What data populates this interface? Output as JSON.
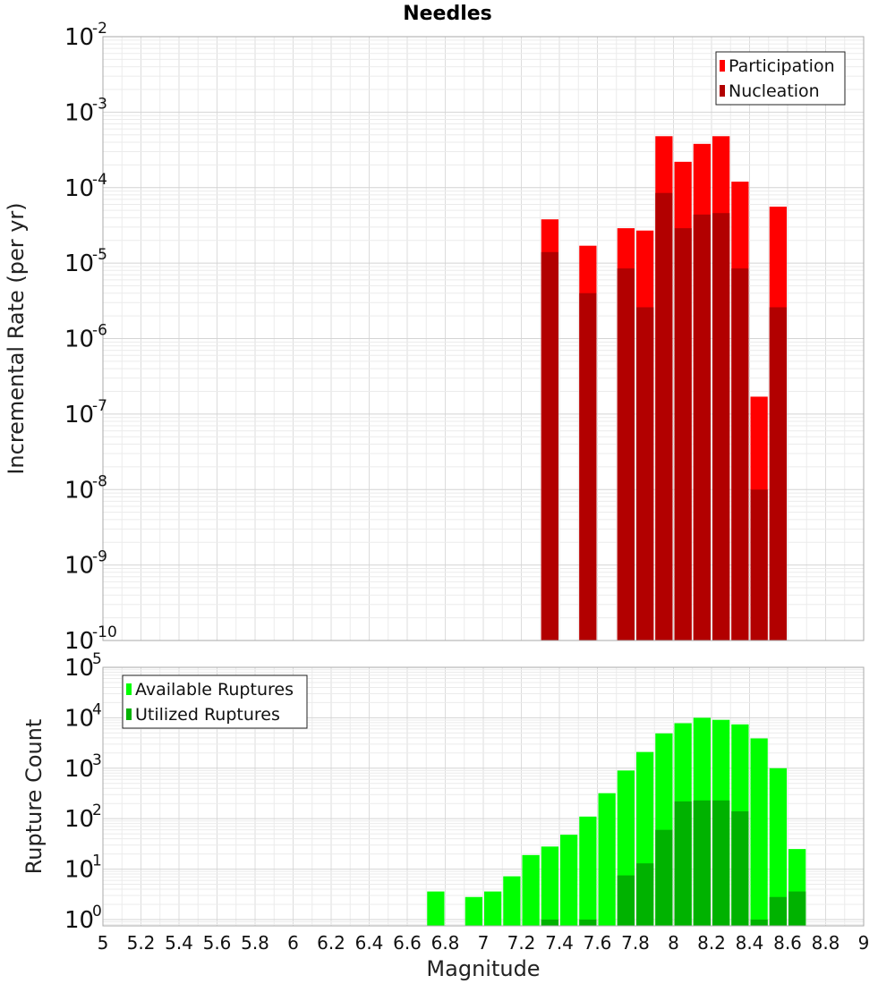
{
  "chart_data": [
    {
      "type": "bar",
      "title": "Needles",
      "xlabel": "",
      "ylabel": "Incremental Rate (per yr)",
      "xlim": [
        5,
        9
      ],
      "ylim": [
        1e-10,
        0.01
      ],
      "yscale": "log",
      "bar_width": 0.1,
      "grid": true,
      "legend_position": "top-right",
      "series": [
        {
          "name": "Participation",
          "color": "#ff0000",
          "x": [
            7.35,
            7.55,
            7.75,
            7.85,
            7.95,
            8.05,
            8.15,
            8.25,
            8.35,
            8.45,
            8.55
          ],
          "values": [
            3.8e-05,
            1.7e-05,
            2.9e-05,
            2.7e-05,
            0.00048,
            0.00022,
            0.00038,
            0.00048,
            0.00012,
            1.7e-07,
            5.6e-05
          ]
        },
        {
          "name": "Nucleation",
          "color": "#b20000",
          "x": [
            7.35,
            7.55,
            7.75,
            7.85,
            7.95,
            8.05,
            8.15,
            8.25,
            8.35,
            8.45,
            8.55
          ],
          "values": [
            1.4e-05,
            4e-06,
            8.5e-06,
            2.6e-06,
            8.5e-05,
            2.9e-05,
            4.4e-05,
            4.6e-05,
            8.5e-06,
            1e-08,
            2.6e-06
          ]
        }
      ]
    },
    {
      "type": "bar",
      "title": "",
      "xlabel": "Magnitude",
      "ylabel": "Rupture Count",
      "xlim": [
        5,
        9
      ],
      "ylim": [
        0.75,
        100000.0
      ],
      "yscale": "log",
      "bar_width": 0.1,
      "grid": true,
      "legend_position": "top-left",
      "x_ticks": [
        "5",
        "5.2",
        "5.4",
        "5.6",
        "5.8",
        "6",
        "6.2",
        "6.4",
        "6.6",
        "6.8",
        "7",
        "7.2",
        "7.4",
        "7.6",
        "7.8",
        "8",
        "8.2",
        "8.4",
        "8.6",
        "8.8",
        "9"
      ],
      "series": [
        {
          "name": "Available Ruptures",
          "color": "#00ff00",
          "x": [
            6.75,
            6.95,
            7.05,
            7.15,
            7.25,
            7.35,
            7.45,
            7.55,
            7.65,
            7.75,
            7.85,
            7.95,
            8.05,
            8.15,
            8.25,
            8.35,
            8.45,
            8.55,
            8.65
          ],
          "values": [
            3.6,
            2.8,
            3.6,
            7.2,
            19,
            28,
            48,
            110,
            320,
            900,
            2100,
            4900,
            7800,
            10000,
            9100,
            7400,
            3900,
            1000,
            25
          ]
        },
        {
          "name": "Utilized Ruptures",
          "color": "#00b200",
          "x": [
            7.35,
            7.55,
            7.75,
            7.85,
            7.95,
            8.05,
            8.15,
            8.25,
            8.35,
            8.45,
            8.55,
            8.65
          ],
          "values": [
            1,
            1,
            7.5,
            13,
            60,
            220,
            230,
            230,
            140,
            1,
            2.8,
            3.6
          ]
        }
      ]
    }
  ]
}
